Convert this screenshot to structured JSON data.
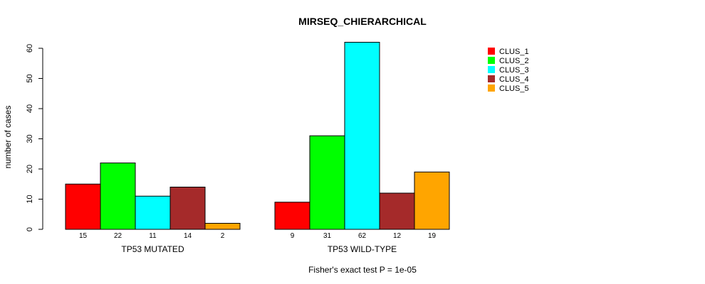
{
  "chart_data": {
    "type": "bar",
    "title": "MIRSEQ_CHIERARCHICAL",
    "ylabel": "number of cases",
    "footnote": "Fisher's exact test P = 1e-05",
    "ylim": [
      0,
      60
    ],
    "yticks": [
      0,
      10,
      20,
      30,
      40,
      50,
      60
    ],
    "grid": false,
    "legend_position": "top-right",
    "groups": [
      {
        "label": "TP53 MUTATED",
        "values": [
          15,
          22,
          11,
          14,
          2
        ],
        "value_labels": [
          "15",
          "22",
          "11",
          "14",
          "2"
        ]
      },
      {
        "label": "TP53 WILD-TYPE",
        "values": [
          9,
          31,
          62,
          12,
          19
        ],
        "value_labels": [
          "9",
          "31",
          "62",
          "12",
          "19"
        ]
      }
    ],
    "series": [
      {
        "name": "CLUS_1",
        "color": "#ff0000"
      },
      {
        "name": "CLUS_2",
        "color": "#00ff00"
      },
      {
        "name": "CLUS_3",
        "color": "#00ffff"
      },
      {
        "name": "CLUS_4",
        "color": "#a52a2a"
      },
      {
        "name": "CLUS_5",
        "color": "#ffa500"
      }
    ]
  }
}
